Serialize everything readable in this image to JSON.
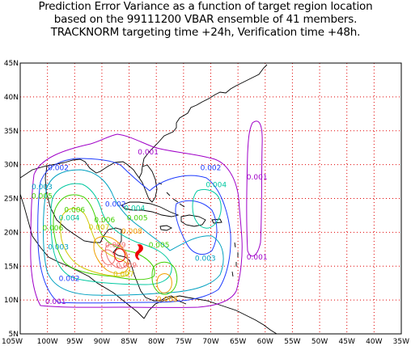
{
  "title": {
    "line1": "Prediction Error Variance as a function of target region location",
    "line2": "based on the 99111200 VBAR ensemble of 41 members.",
    "line3": "TRACKNORM targeting time +24h, Verification time +48h."
  },
  "axes": {
    "lat_ticks": [
      "45N",
      "40N",
      "35N",
      "30N",
      "25N",
      "20N",
      "15N",
      "10N",
      "5N"
    ],
    "lon_ticks": [
      "105W",
      "100W",
      "95W",
      "90W",
      "85W",
      "80W",
      "75W",
      "70W",
      "65W",
      "60W",
      "55W",
      "50W",
      "45W",
      "40W",
      "35W"
    ],
    "lon_range": [
      -105,
      -35
    ],
    "lat_range": [
      5,
      45
    ],
    "grid": "red dotted"
  },
  "colors": {
    "purple": "#a000c8",
    "blue": "#1e3cff",
    "cyan": "#00a0c0",
    "teal": "#00c8a0",
    "green": "#40d000",
    "yellow": "#d0c800",
    "orange": "#f0a000",
    "salmon": "#f07070",
    "red": "#f00000",
    "grid": "#e00000",
    "coast": "#000000"
  },
  "contour_labels": [
    {
      "text": "0.001",
      "color": "purple",
      "lon": -81.5,
      "lat": 31.5
    },
    {
      "text": "0.001",
      "color": "purple",
      "lon": -61.5,
      "lat": 27.8
    },
    {
      "text": "0.001",
      "color": "purple",
      "lon": -61.5,
      "lat": 16.0
    },
    {
      "text": "0.001",
      "color": "purple",
      "lon": -98.5,
      "lat": 9.4
    },
    {
      "text": "0.002",
      "color": "blue",
      "lon": -98.0,
      "lat": 29.2
    },
    {
      "text": "0.002",
      "color": "blue",
      "lon": -70.0,
      "lat": 29.2
    },
    {
      "text": "0.002",
      "color": "blue",
      "lon": -87.5,
      "lat": 23.8
    },
    {
      "text": "0.002",
      "color": "blue",
      "lon": -96.0,
      "lat": 12.8
    },
    {
      "text": "0.003",
      "color": "cyan",
      "lon": -101.0,
      "lat": 26.4
    },
    {
      "text": "0.003",
      "color": "cyan",
      "lon": -98.0,
      "lat": 17.5
    },
    {
      "text": "0.003",
      "color": "cyan",
      "lon": -71.0,
      "lat": 15.8
    },
    {
      "text": "0.004",
      "color": "teal",
      "lon": -69.0,
      "lat": 26.7
    },
    {
      "text": "0.004",
      "color": "teal",
      "lon": -84.0,
      "lat": 23.2
    },
    {
      "text": "0.004",
      "color": "teal",
      "lon": -96.0,
      "lat": 21.8
    },
    {
      "text": "0.005",
      "color": "green",
      "lon": -101.0,
      "lat": 25.0
    },
    {
      "text": "0.005",
      "color": "green",
      "lon": -83.5,
      "lat": 21.8
    },
    {
      "text": "0.005",
      "color": "green",
      "lon": -79.5,
      "lat": 17.8
    },
    {
      "text": "0.006",
      "color": "green",
      "lon": -95.0,
      "lat": 23.0
    },
    {
      "text": "0.006",
      "color": "green",
      "lon": -89.5,
      "lat": 21.5
    },
    {
      "text": "0.006",
      "color": "green",
      "lon": -99.0,
      "lat": 20.3
    },
    {
      "text": "0.007",
      "color": "yellow",
      "lon": -90.5,
      "lat": 20.4
    },
    {
      "text": "0.007",
      "color": "yellow",
      "lon": -86.0,
      "lat": 13.5
    },
    {
      "text": "0.008",
      "color": "orange",
      "lon": -84.5,
      "lat": 19.8
    },
    {
      "text": "0.008",
      "color": "orange",
      "lon": -78.0,
      "lat": 9.8
    },
    {
      "text": "0.009",
      "color": "salmon",
      "lon": -87.5,
      "lat": 17.8
    },
    {
      "text": "0.009",
      "color": "salmon",
      "lon": -85.5,
      "lat": 14.8
    }
  ]
}
